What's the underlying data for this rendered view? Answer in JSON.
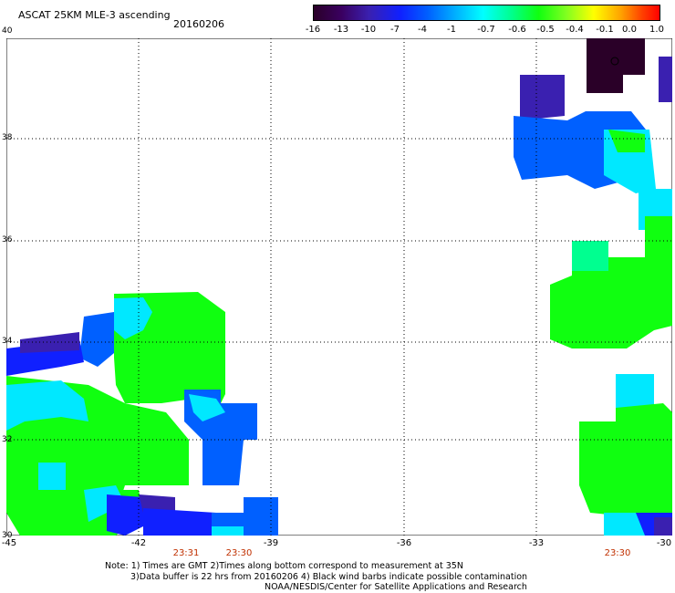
{
  "title": "ASCAT 25KM MLE-3 ascending",
  "date": "20160206",
  "colorbar": {
    "labels": [
      "-16",
      "-13",
      "-10",
      "-7",
      "-4",
      "-1",
      "-0.7",
      "-0.6",
      "-0.5",
      "-0.4",
      "-0.1",
      "0.0",
      "1.0"
    ]
  },
  "axes": {
    "y_labels": [
      "40",
      "38",
      "36",
      "34",
      "32",
      "30"
    ],
    "x_labels": [
      "-45",
      "-42",
      "-39",
      "-36",
      "-33",
      "-30"
    ]
  },
  "time_labels": [
    "23:31",
    "23:30",
    "23:30"
  ],
  "note": {
    "line1": "Note: 1) Times are GMT 2)Times along bottom correspond to measurement at 35N",
    "line2": "3)Data buffer is 22 hrs from 20160206 4) Black wind barbs indicate possible contamination",
    "line3": "NOAA/NESDIS/Center for Satellite Applications and Research"
  },
  "colors": {
    "green": "#10ff10",
    "cyan": "#00e8ff",
    "blue": "#0060ff",
    "darkblue": "#1020ff",
    "purple": "#3a20b0",
    "dark": "#2a0028"
  }
}
